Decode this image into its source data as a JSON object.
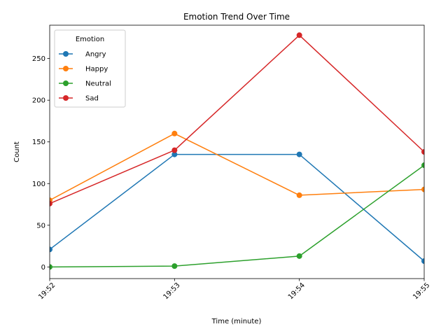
{
  "chart_data": {
    "type": "line",
    "title": "Emotion Trend Over Time",
    "xlabel": "Time (minute)",
    "ylabel": "Count",
    "categories": [
      "19:52",
      "19:53",
      "19:54",
      "19:55"
    ],
    "ylim": [
      -14,
      290
    ],
    "yticks": [
      0,
      50,
      100,
      150,
      200,
      250
    ],
    "grid": false,
    "legend": {
      "title": "Emotion",
      "placement": "top-left"
    },
    "series": [
      {
        "name": "Angry",
        "color": "#1f77b4",
        "values": [
          21,
          135,
          135,
          7
        ]
      },
      {
        "name": "Happy",
        "color": "#ff7f0e",
        "values": [
          80,
          160,
          86,
          93
        ]
      },
      {
        "name": "Neutral",
        "color": "#2ca02c",
        "values": [
          0,
          1,
          13,
          122
        ]
      },
      {
        "name": "Sad",
        "color": "#d62728",
        "values": [
          76,
          140,
          278,
          138
        ]
      }
    ]
  }
}
